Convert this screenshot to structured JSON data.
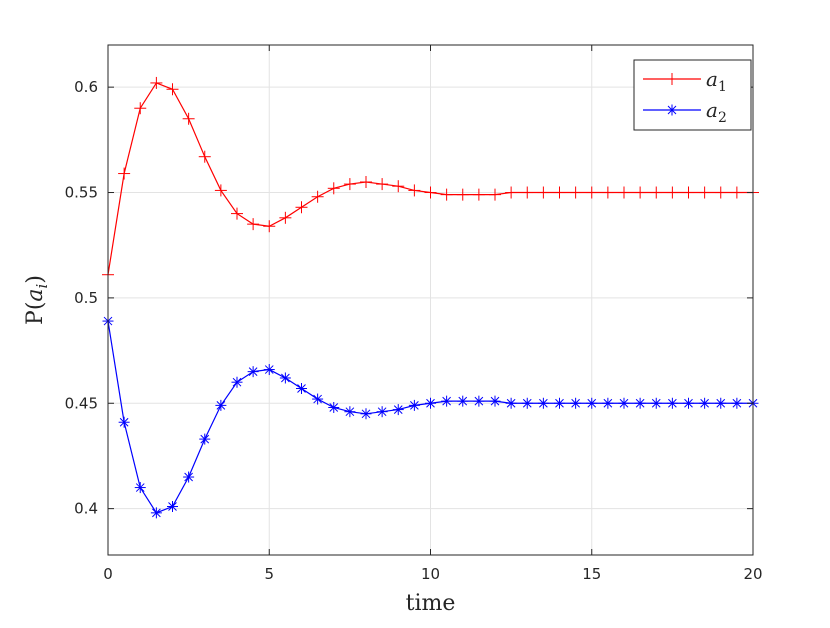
{
  "chart_data": {
    "type": "line",
    "xlabel": "time",
    "ylabel": "P(a_i)",
    "ylabel_parts": {
      "prefix": "P(",
      "var": "a",
      "sub": "i",
      "suffix": ")"
    },
    "xlim": [
      0,
      20
    ],
    "ylim": [
      0.378,
      0.62
    ],
    "xticks": [
      0,
      5,
      10,
      15,
      20
    ],
    "xtick_labels": [
      "0",
      "5",
      "10",
      "15",
      "20"
    ],
    "yticks": [
      0.4,
      0.45,
      0.5,
      0.55,
      0.6
    ],
    "ytick_labels": [
      "0.4",
      "0.45",
      "0.5",
      "0.55",
      "0.6"
    ],
    "grid": true,
    "legend_position": "top-right",
    "x": [
      0,
      0.5,
      1,
      1.5,
      2,
      2.5,
      3,
      3.5,
      4,
      4.5,
      5,
      5.5,
      6,
      6.5,
      7,
      7.5,
      8,
      8.5,
      9,
      9.5,
      10,
      10.5,
      11,
      11.5,
      12,
      12.5,
      13,
      13.5,
      14,
      14.5,
      15,
      15.5,
      16,
      16.5,
      17,
      17.5,
      18,
      18.5,
      19,
      19.5,
      20
    ],
    "series": [
      {
        "name": "a_1",
        "legend_var": "a",
        "legend_sub": "1",
        "color": "#ff0000",
        "marker": "plus",
        "values": [
          0.511,
          0.559,
          0.59,
          0.602,
          0.599,
          0.585,
          0.567,
          0.551,
          0.54,
          0.535,
          0.534,
          0.538,
          0.543,
          0.548,
          0.552,
          0.554,
          0.555,
          0.554,
          0.553,
          0.551,
          0.55,
          0.549,
          0.549,
          0.549,
          0.549,
          0.55,
          0.55,
          0.55,
          0.55,
          0.55,
          0.55,
          0.55,
          0.55,
          0.55,
          0.55,
          0.55,
          0.55,
          0.55,
          0.55,
          0.55,
          0.55
        ]
      },
      {
        "name": "a_2",
        "legend_var": "a",
        "legend_sub": "2",
        "color": "#0000ff",
        "marker": "asterisk",
        "values": [
          0.489,
          0.441,
          0.41,
          0.398,
          0.401,
          0.415,
          0.433,
          0.449,
          0.46,
          0.465,
          0.466,
          0.462,
          0.457,
          0.452,
          0.448,
          0.446,
          0.445,
          0.446,
          0.447,
          0.449,
          0.45,
          0.451,
          0.451,
          0.451,
          0.451,
          0.45,
          0.45,
          0.45,
          0.45,
          0.45,
          0.45,
          0.45,
          0.45,
          0.45,
          0.45,
          0.45,
          0.45,
          0.45,
          0.45,
          0.45,
          0.45
        ]
      }
    ]
  }
}
